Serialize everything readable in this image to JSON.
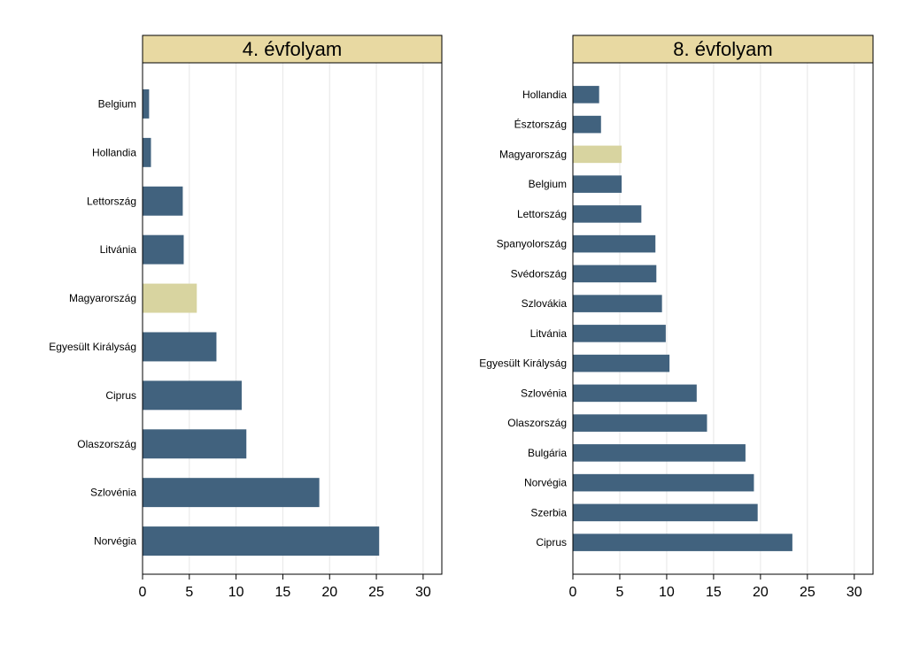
{
  "chart_data": [
    {
      "type": "bar",
      "orientation": "horizontal",
      "title": "4. évfolyam",
      "categories": [
        "Belgium",
        "Hollandia",
        "Lettország",
        "Litvánia",
        "Magyarország",
        "Egyesült Királyság",
        "Ciprus",
        "Olaszország",
        "Szlovénia",
        "Norvégia"
      ],
      "values": [
        0.7,
        0.9,
        4.3,
        4.4,
        5.8,
        7.9,
        10.6,
        11.1,
        18.9,
        25.3
      ],
      "highlight": "Magyarország",
      "xlim": [
        0,
        32
      ],
      "xticks": [
        0,
        5,
        10,
        15,
        20,
        25,
        30
      ],
      "grid": "vertical",
      "colors": {
        "bar": "#41627e",
        "highlight": "#d8d4a0",
        "title_bg": "#e8d9a2"
      }
    },
    {
      "type": "bar",
      "orientation": "horizontal",
      "title": "8. évfolyam",
      "categories": [
        "Hollandia",
        "Észtország",
        "Magyarország",
        "Belgium",
        "Lettország",
        "Spanyolország",
        "Svédország",
        "Szlovákia",
        "Litvánia",
        "Egyesült Királyság",
        "Szlovénia",
        "Olaszország",
        "Bulgária",
        "Norvégia",
        "Szerbia",
        "Ciprus"
      ],
      "values": [
        2.8,
        3.0,
        5.2,
        5.2,
        7.3,
        8.8,
        8.9,
        9.5,
        9.9,
        10.3,
        13.2,
        14.3,
        18.4,
        19.3,
        19.7,
        23.4
      ],
      "highlight": "Magyarország",
      "xlim": [
        0,
        32
      ],
      "xticks": [
        0,
        5,
        10,
        15,
        20,
        25,
        30
      ],
      "grid": "vertical",
      "colors": {
        "bar": "#41627e",
        "highlight": "#d8d4a0",
        "title_bg": "#e8d9a2"
      }
    }
  ]
}
